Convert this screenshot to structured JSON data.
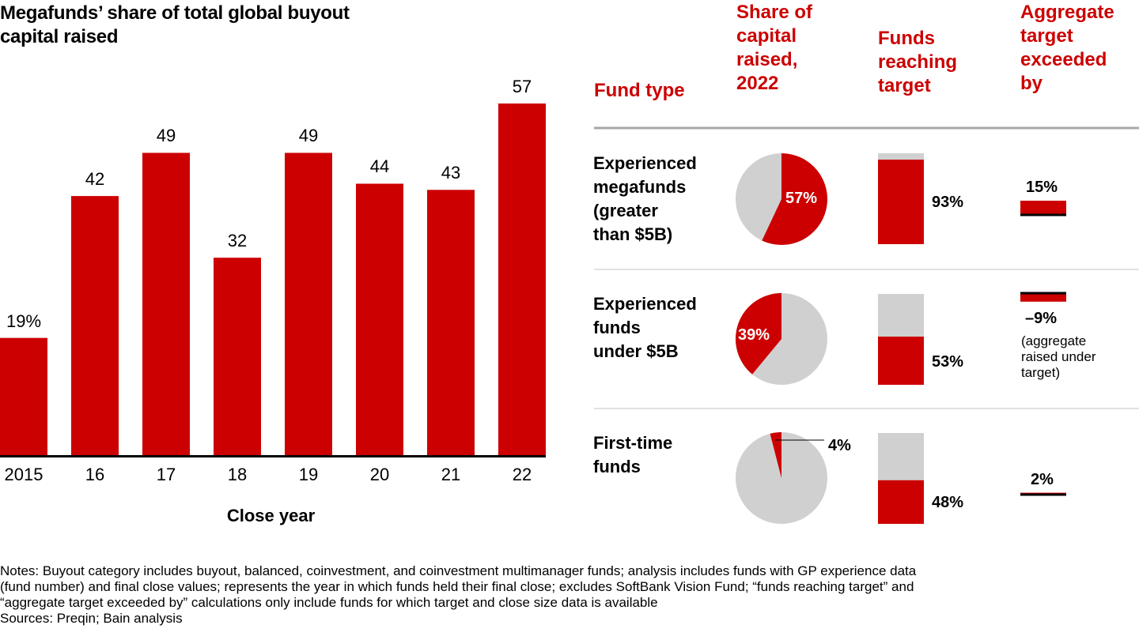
{
  "chart_data": [
    {
      "type": "bar",
      "title": "Megafunds’ share of total global buyout capital raised",
      "xlabel": "Close year",
      "ylabel": "",
      "categories": [
        "2015",
        "16",
        "17",
        "18",
        "19",
        "20",
        "21",
        "22"
      ],
      "values": [
        19,
        42,
        49,
        32,
        49,
        44,
        43,
        57
      ],
      "data_labels": [
        "19%",
        "42",
        "49",
        "32",
        "49",
        "44",
        "43",
        "57"
      ],
      "ylim": [
        0,
        57
      ],
      "grid": false,
      "color": "#cc0000"
    },
    {
      "type": "table",
      "columns": [
        "Fund type",
        "Share of capital raised, 2022",
        "Funds reaching target",
        "Aggregate target exceeded by"
      ],
      "rows": [
        {
          "fund_type": "Experienced megafunds (greater than $5B)",
          "share_of_capital_raised_2022": 57,
          "funds_reaching_target": 93,
          "aggregate_target_exceeded_by": 15
        },
        {
          "fund_type": "Experienced funds under $5B",
          "share_of_capital_raised_2022": 39,
          "funds_reaching_target": 53,
          "aggregate_target_exceeded_by": -9
        },
        {
          "fund_type": "First-time funds",
          "share_of_capital_raised_2022": 4,
          "funds_reaching_target": 48,
          "aggregate_target_exceeded_by": 2
        }
      ]
    }
  ],
  "title_line1": "Megafunds’ share of total global buyout",
  "title_line2": "capital raised",
  "bar_chart": {
    "xlabel": "Close year",
    "categories": [
      "2015",
      "16",
      "17",
      "18",
      "19",
      "20",
      "21",
      "22"
    ],
    "values": [
      19,
      42,
      49,
      32,
      49,
      44,
      43,
      57
    ],
    "labels": [
      "19%",
      "42",
      "49",
      "32",
      "49",
      "44",
      "43",
      "57"
    ]
  },
  "table": {
    "headers": {
      "fund_type": [
        "Fund type"
      ],
      "share": [
        "Share of",
        "capital",
        "raised,",
        "2022"
      ],
      "reaching": [
        "Funds",
        "reaching",
        "target"
      ],
      "aggregate": [
        "Aggregate",
        "target",
        "exceeded",
        "by"
      ]
    },
    "rows": [
      {
        "label_lines": [
          "Experienced",
          "megafunds",
          "(greater",
          "than $5B)"
        ],
        "share": 57,
        "share_label": "57%",
        "reaching": 93,
        "reaching_label": "93%",
        "aggregate": 15,
        "aggregate_label": "15%",
        "aggregate_note": []
      },
      {
        "label_lines": [
          "Experienced",
          "funds",
          "under $5B"
        ],
        "share": 39,
        "share_label": "39%",
        "reaching": 53,
        "reaching_label": "53%",
        "aggregate": -9,
        "aggregate_label": "–9%",
        "aggregate_note": [
          "(aggregate",
          "raised under",
          "target)"
        ]
      },
      {
        "label_lines": [
          "First-time",
          "funds"
        ],
        "share": 4,
        "share_label": "4%",
        "reaching": 48,
        "reaching_label": "48%",
        "aggregate": 2,
        "aggregate_label": "2%",
        "aggregate_note": []
      }
    ]
  },
  "notes": [
    "Notes: Buyout category includes buyout, balanced, coinvestment, and coinvestment multimanager funds; analysis includes funds with GP experience data",
    "(fund number) and final close values; represents the year in which funds held their final close; excludes SoftBank Vision Fund; “funds reaching target” and",
    "“aggregate target exceeded by” calculations only include funds for which target and close size data is available"
  ],
  "sources": "Sources: Preqin; Bain analysis",
  "colors": {
    "accent": "#cc0000",
    "neutral": "#d0d0d0",
    "divider_header": "#a8a8a8",
    "divider_row": "#d8d8d8",
    "text": "#000000"
  }
}
